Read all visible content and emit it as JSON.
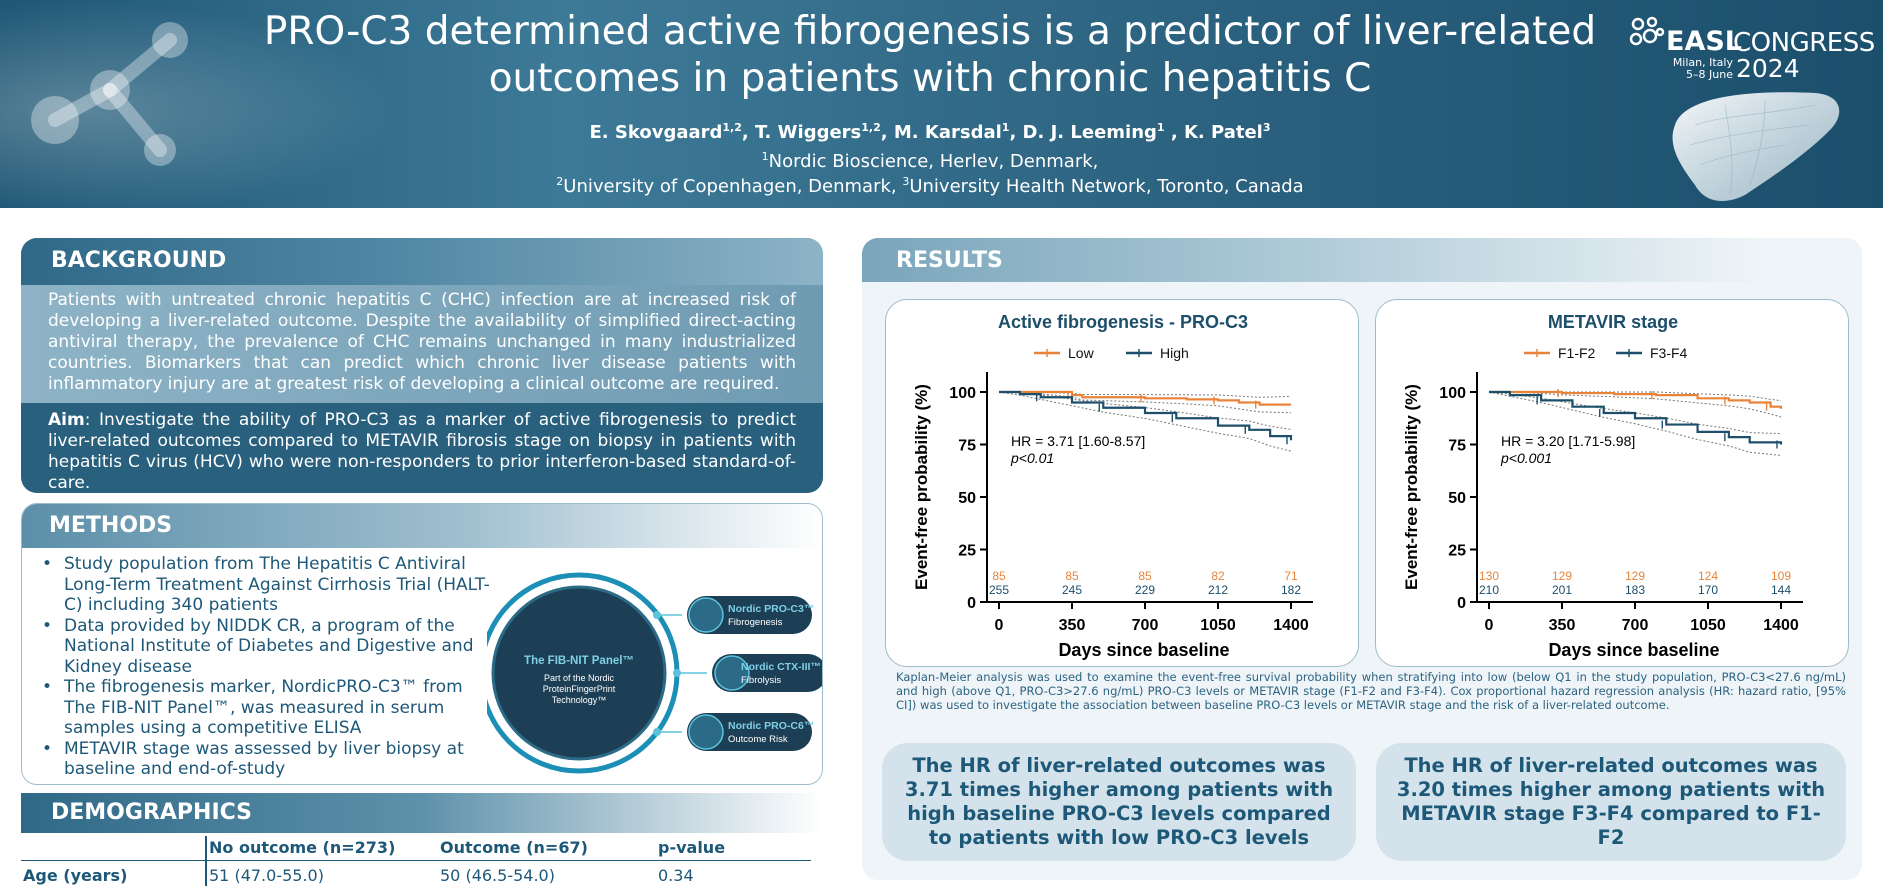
{
  "header": {
    "title_line1": "PRO-C3 determined active fibrogenesis is a predictor of liver-related",
    "title_line2": "outcomes in patients with chronic hepatitis C",
    "authors": [
      {
        "name": "E. Skovgaard",
        "sup": "1,2",
        "sep": ", "
      },
      {
        "name": "T. Wiggers",
        "sup": "1,2",
        "sep": ", "
      },
      {
        "name": "M. Karsdal",
        "sup": "1",
        "sep": ", "
      },
      {
        "name": "D. J. Leeming",
        "sup": "1",
        "sep": " , "
      },
      {
        "name": "K. Patel",
        "sup": "3",
        "sep": ""
      }
    ],
    "affiliation1": {
      "sup": "1",
      "text": "Nordic Bioscience, Herlev, Denmark,"
    },
    "affiliation2": {
      "sup1": "2",
      "text1": "University of Copenhagen, Denmark, ",
      "sup2": "3",
      "text2": "University Health Network, Toronto, Canada"
    },
    "congress": {
      "brand": "EASL",
      "word": "CONGRESS",
      "location": "Milan, Italy",
      "dates": "5–8 June",
      "year": "2024"
    }
  },
  "background": {
    "heading": "BACKGROUND",
    "text": "Patients with untreated chronic hepatitis C (CHC) infection are at increased risk of developing a liver-related outcome. Despite the availability of simplified direct-acting antiviral therapy, the prevalence of CHC remains unchanged in many industrialized countries. Biomarkers that can predict which chronic liver disease patients with inflammatory injury are at greatest risk of developing a clinical outcome are required.",
    "aim_label": "Aim",
    "aim_text": ": Investigate the ability of PRO-C3 as a marker of active fibrogenesis to predict liver-related outcomes compared to METAVIR fibrosis stage on biopsy in patients with hepatitis C virus (HCV) who were non-responders to prior interferon-based standard-of-care."
  },
  "methods": {
    "heading": "METHODS",
    "bullets": [
      "Study population from The Hepatitis C Antiviral Long-Term Treatment Against Cirrhosis Trial (HALT-C) including 340 patients",
      "Data provided by NIDDK CR, a program of the National Institute of Diabetes and Digestive and Kidney disease",
      "The fibrogenesis marker, NordicPRO-C3™ from The FIB-NIT Panel™, was measured in serum samples using a competitive ELISA",
      "METAVIR stage was assessed by liver biopsy at baseline and end-of-study"
    ],
    "panel": {
      "title": "The FIB-NIT Panel™",
      "subtitle_lines": [
        "Part of the Nordic",
        "ProteinFingerPrint",
        "Technology™"
      ],
      "items": [
        {
          "name": "Nordic PRO-C3™",
          "desc": "Fibrogenesis"
        },
        {
          "name": "Nordic CTX-III™",
          "desc": "Fibrolysis"
        },
        {
          "name": "Nordic PRO-C6™",
          "desc": "Outcome Risk"
        }
      ]
    }
  },
  "demographics": {
    "heading": "DEMOGRAPHICS",
    "columns": [
      "",
      "No outcome (n=273)",
      "Outcome (n=67)",
      "p-value"
    ],
    "rows": [
      [
        "Age (years)",
        "51 (47.0-55.0)",
        "50 (46.5-54.0)",
        "0.34"
      ]
    ]
  },
  "results": {
    "heading": "RESULTS",
    "caption": "Kaplan-Meier analysis was used to examine the event-free survival probability when stratifying into low (below Q1 in the study population, PRO-C3<27.6 ng/mL) and high (above Q1, PRO-C3>27.6 ng/mL) PRO-C3 levels or METAVIR stage (F1-F2 and F3-F4). Cox proportional hazard regression analysis (HR: hazard ratio, [95% CI]) was used to investigate the association between baseline PRO-C3 levels or METAVIR stage and the risk of a liver-related outcome.",
    "hr_statements": [
      "The HR of liver-related outcomes was 3.71 times higher among patients with high baseline PRO-C3 levels compared to patients with low PRO-C3 levels",
      "The HR of liver-related outcomes was 3.20 times higher among patients with METAVIR stage F3-F4 compared to F1-F2"
    ]
  },
  "colors": {
    "low_series": "#e8843a",
    "high_series": "#1d4f6b",
    "accent": "#2f6987"
  },
  "chart_data": [
    {
      "type": "line",
      "title": "Active fibrogenesis - PRO-C3",
      "xlabel": "Days since baseline",
      "ylabel": "Event-free probability (%)",
      "xticks": [
        0,
        350,
        700,
        1050,
        1400
      ],
      "yticks": [
        0,
        25,
        50,
        75,
        100
      ],
      "xlim": [
        0,
        1400
      ],
      "ylim": [
        0,
        100
      ],
      "legend_position": "top-center",
      "series": [
        {
          "name": "Low",
          "color": "#e8843a",
          "x": [
            0,
            150,
            350,
            400,
            700,
            900,
            1050,
            1150,
            1250,
            1400
          ],
          "y": [
            100,
            100,
            98.5,
            97.5,
            97,
            96.5,
            96,
            95,
            94,
            94
          ]
        },
        {
          "name": "High",
          "color": "#1d4f6b",
          "x": [
            0,
            100,
            200,
            350,
            500,
            700,
            850,
            1050,
            1200,
            1300,
            1400
          ],
          "y": [
            100,
            99,
            97.5,
            95,
            92.5,
            90,
            87.5,
            84,
            82,
            79,
            77
          ]
        }
      ],
      "annotation": {
        "hr": "HR = 3.71 [1.60-8.57]",
        "p": "p<0.01"
      },
      "at_risk": [
        {
          "series": "Low",
          "values": [
            85,
            85,
            85,
            82,
            71
          ]
        },
        {
          "series": "High",
          "values": [
            255,
            245,
            229,
            212,
            182
          ]
        }
      ]
    },
    {
      "type": "line",
      "title": "METAVIR stage",
      "xlabel": "Days since baseline",
      "ylabel": "Event-free probability (%)",
      "xticks": [
        0,
        350,
        700,
        1050,
        1400
      ],
      "yticks": [
        0,
        25,
        50,
        75,
        100
      ],
      "xlim": [
        0,
        1400
      ],
      "ylim": [
        0,
        100
      ],
      "legend_position": "top-center",
      "series": [
        {
          "name": "F1-F2",
          "color": "#e8843a",
          "x": [
            0,
            200,
            350,
            600,
            800,
            1000,
            1150,
            1250,
            1350,
            1400
          ],
          "y": [
            100,
            100,
            99.5,
            99,
            98.5,
            97,
            96,
            95,
            93,
            92
          ]
        },
        {
          "name": "F3-F4",
          "color": "#1d4f6b",
          "x": [
            0,
            100,
            250,
            400,
            550,
            700,
            850,
            1000,
            1150,
            1250,
            1400
          ],
          "y": [
            100,
            98.5,
            96,
            93,
            90,
            87.5,
            84.5,
            81,
            78.5,
            76,
            75
          ]
        }
      ],
      "annotation": {
        "hr": "HR = 3.20 [1.71-5.98]",
        "p": "p<0.001"
      },
      "at_risk": [
        {
          "series": "F1-F2",
          "values": [
            130,
            129,
            129,
            124,
            109
          ]
        },
        {
          "series": "F3-F4",
          "values": [
            210,
            201,
            183,
            170,
            144
          ]
        }
      ]
    }
  ]
}
